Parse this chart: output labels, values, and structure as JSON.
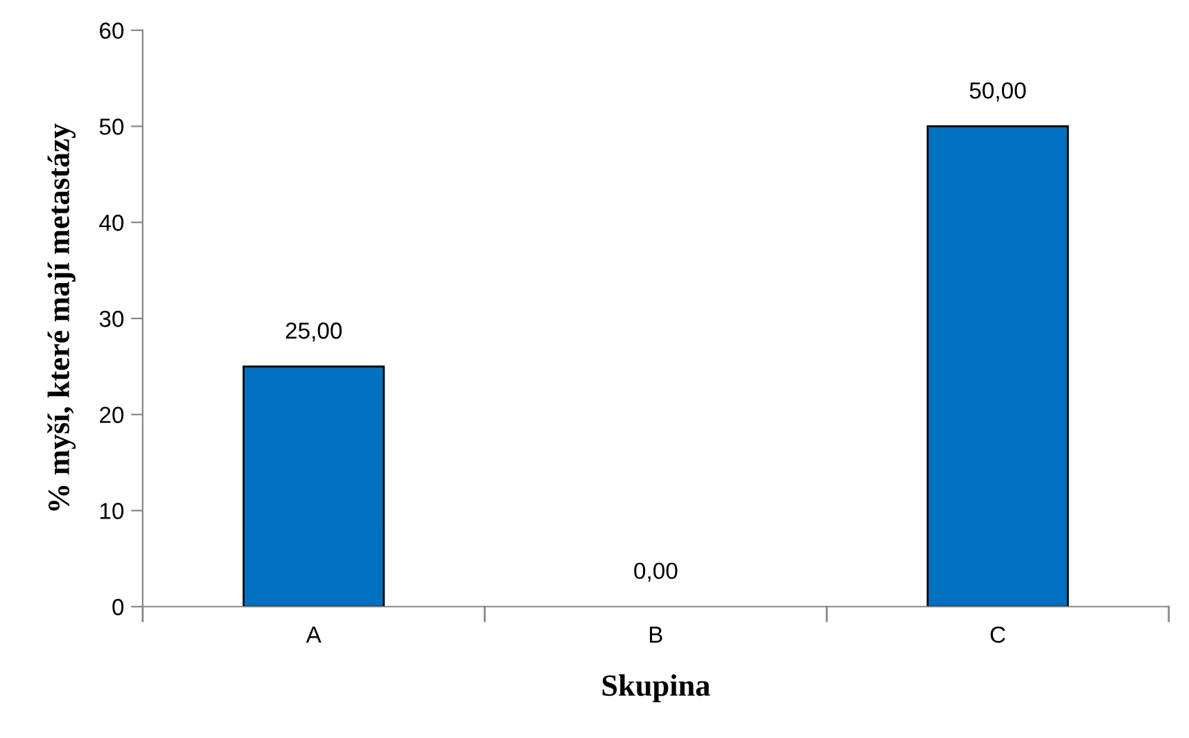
{
  "chart_data": {
    "type": "bar",
    "xlabel": "Skupina",
    "ylabel": "% myší, které mají metastázy",
    "categories": [
      "A",
      "B",
      "C"
    ],
    "values": [
      25,
      0,
      50
    ],
    "value_labels": [
      "25,00",
      "0,00",
      "50,00"
    ],
    "color": "#0070c0",
    "ylim": [
      0,
      60
    ],
    "yticks": [
      0,
      10,
      20,
      30,
      40,
      50,
      60
    ],
    "grid": false,
    "legend": false
  }
}
